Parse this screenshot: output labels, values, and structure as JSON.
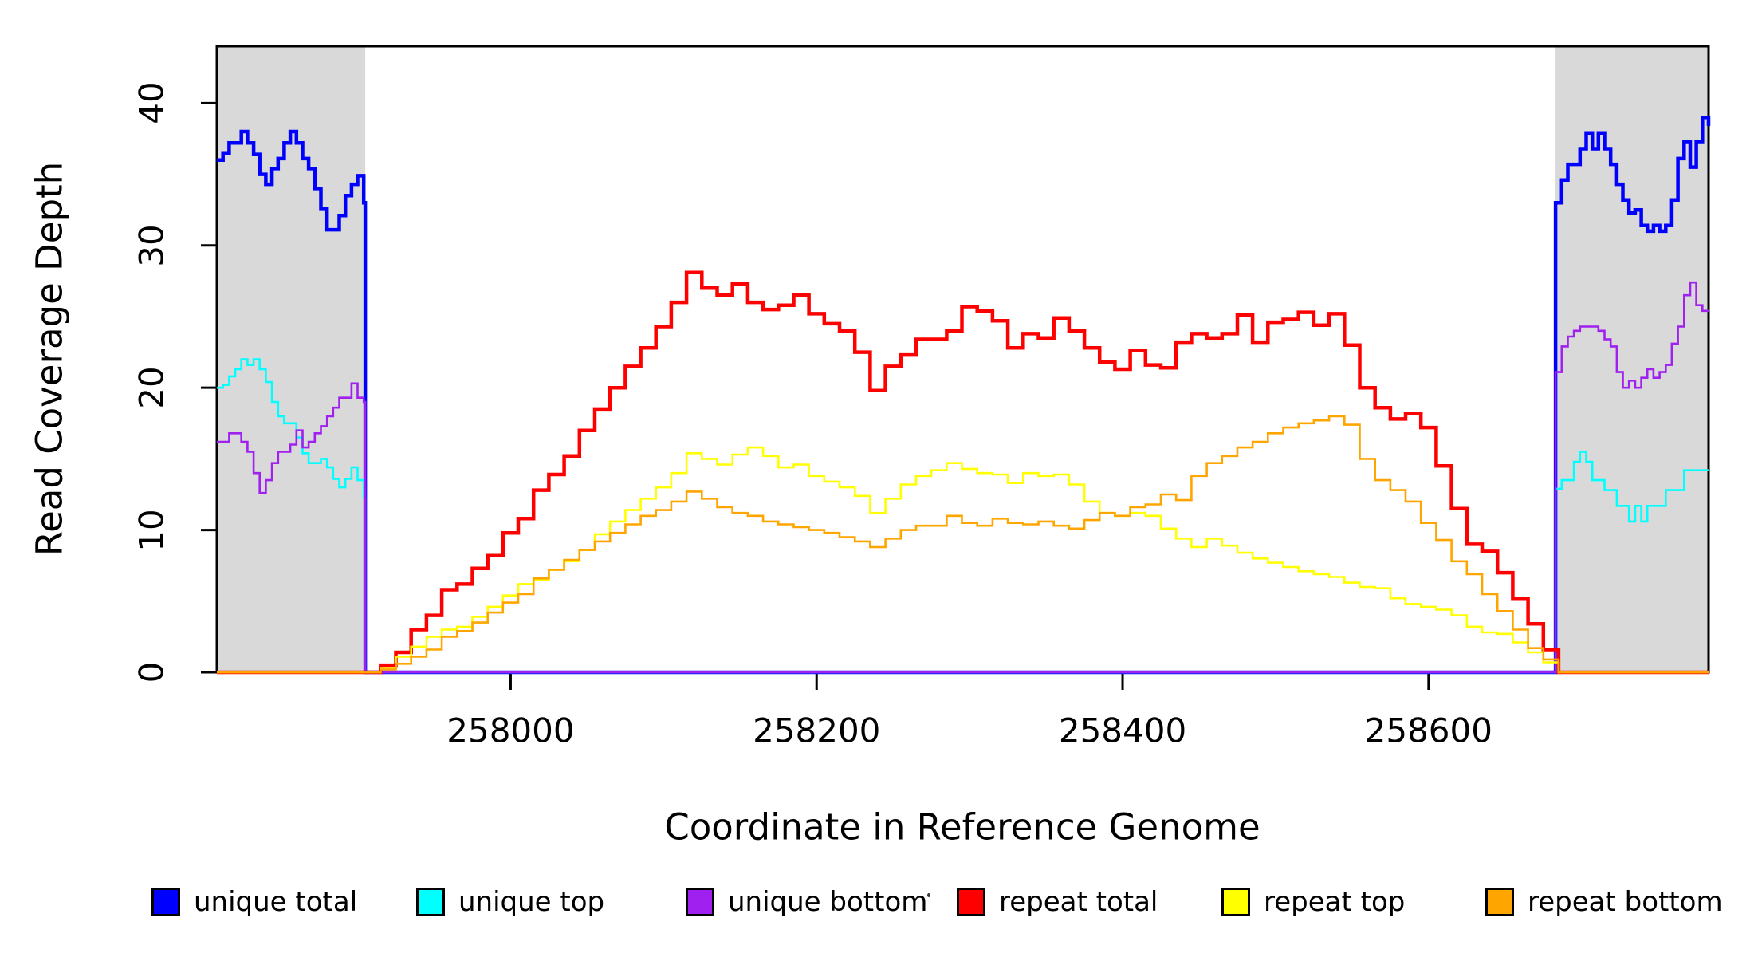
{
  "chart_data": {
    "type": "line",
    "step": true,
    "title": "",
    "xlabel": "Coordinate in Reference Genome",
    "ylabel": "Read Coverage Depth",
    "xlim": [
      257808,
      258783
    ],
    "ylim": [
      0,
      44
    ],
    "xticks": [
      258000,
      258200,
      258400,
      258600
    ],
    "yticks": [
      0,
      10,
      20,
      30,
      40
    ],
    "grid": false,
    "legend_position": "bottom",
    "background_color": "#ffffff",
    "shaded_regions": [
      {
        "name": "left-flank-unique-region",
        "x0": 257808,
        "x1": 257905,
        "color": "#d9d9d9"
      },
      {
        "name": "right-flank-unique-region",
        "x0": 258683,
        "x1": 258783,
        "color": "#d9d9d9"
      }
    ],
    "series": [
      {
        "name": "unique total",
        "color": "#0000ff",
        "line_width": 4.5,
        "parts": [
          {
            "x0": 257808,
            "dx": 4,
            "values": [
              36,
              36.5,
              37.2,
              37.2,
              38,
              37.2,
              36.4,
              35,
              34.3,
              35.4,
              36.1,
              37.2,
              38,
              37.2,
              36.1,
              35.4,
              34,
              32.6,
              31.1,
              31.1,
              32.1,
              33.5,
              34.3,
              34.9,
              33
            ]
          },
          {
            "x": 257905,
            "y": 0
          },
          {
            "x": 258683,
            "y": 33
          },
          {
            "x0": 258687,
            "dx": 4,
            "values": [
              34.6,
              35.7,
              35.7,
              36.8,
              37.9,
              36.8,
              37.9,
              36.8,
              35.7,
              34.3,
              33.2,
              32.3,
              32.5,
              31.4,
              31,
              31.4,
              31,
              31.4,
              33.2,
              36.1,
              37.3,
              35.5,
              37.3,
              39,
              38.4
            ]
          }
        ]
      },
      {
        "name": "unique top",
        "color": "#00ffff",
        "line_width": 2.6,
        "parts": [
          {
            "x0": 257808,
            "dx": 4,
            "values": [
              20,
              20.2,
              20.8,
              21.3,
              22,
              21.6,
              22,
              21.3,
              20.4,
              19,
              18,
              17.5,
              17.5,
              16.5,
              15.4,
              14.7,
              14.7,
              15,
              14.4,
              13.6,
              13,
              13.6,
              14.4,
              13.5,
              12.3
            ]
          },
          {
            "x": 257905,
            "y": 0
          },
          {
            "x": 258683,
            "y": 12.9
          },
          {
            "x0": 258687,
            "dx": 4,
            "values": [
              13.5,
              13.5,
              14.8,
              15.5,
              14.8,
              13.5,
              13.5,
              12.8,
              12.8,
              11.7,
              11.7,
              10.6,
              11.7,
              10.6,
              11.7,
              11.7,
              11.7,
              12.8,
              12.8,
              12.8,
              14.2,
              14.2,
              14.2,
              14.2,
              14.2
            ]
          }
        ]
      },
      {
        "name": "unique bottom",
        "color": "#a020f0",
        "line_width": 2.6,
        "parts": [
          {
            "x0": 257808,
            "dx": 4,
            "values": [
              16.2,
              16.2,
              16.8,
              16.8,
              16.2,
              15.5,
              14,
              12.6,
              13.5,
              14.7,
              15.5,
              15.5,
              16,
              17,
              15.8,
              16.2,
              16.8,
              17.3,
              18,
              18.6,
              19.3,
              19.3,
              20.3,
              19.3,
              19
            ]
          },
          {
            "x": 257905,
            "y": 0
          },
          {
            "x": 258683,
            "y": 21.1
          },
          {
            "x0": 258687,
            "dx": 4,
            "values": [
              22.9,
              23.6,
              24,
              24.3,
              24.3,
              24.3,
              24,
              23.4,
              22.9,
              21.1,
              20,
              20.5,
              20,
              20.7,
              21.3,
              20.7,
              21.1,
              21.6,
              23.1,
              24.3,
              26.5,
              27.4,
              25.8,
              25.4,
              25.4
            ]
          }
        ]
      },
      {
        "name": "repeat total",
        "color": "#ff0000",
        "line_width": 4.5,
        "parts": [
          {
            "x": 257808,
            "y": 0
          },
          {
            "x": 257905,
            "y": 0
          },
          {
            "x0": 257915,
            "dx": 10,
            "values": [
              0.5,
              1.4,
              3,
              4,
              5.8,
              6.2,
              7.3,
              8.2,
              9.8,
              10.8,
              12.8,
              13.9,
              15.2,
              17,
              18.5,
              20,
              21.5,
              22.8,
              24.3,
              26,
              28.1,
              27,
              26.5,
              27.3,
              26,
              25.5,
              25.8,
              26.5,
              25.2,
              24.5,
              24,
              22.5,
              19.8,
              21.5,
              22.3,
              23.4,
              23.4,
              24,
              25.7,
              25.4,
              24.7,
              22.8,
              23.8,
              23.5,
              24.9,
              24,
              22.8,
              21.8,
              21.3,
              22.6,
              21.6,
              21.4,
              23.2,
              23.8,
              23.5,
              23.8,
              25.1,
              23.2,
              24.6,
              24.8,
              25.3,
              24.4,
              25.2,
              23,
              20,
              18.6,
              17.8,
              18.2,
              17.2,
              14.5,
              11.5,
              9,
              8.5,
              7,
              5.2,
              3.4,
              1.6,
              0
            ]
          },
          {
            "x": 258783,
            "y": 0
          }
        ]
      },
      {
        "name": "repeat top",
        "color": "#ffff00",
        "line_width": 2.6,
        "parts": [
          {
            "x": 257808,
            "y": 0
          },
          {
            "x": 257905,
            "y": 0
          },
          {
            "x0": 257915,
            "dx": 10,
            "values": [
              0.3,
              1.1,
              1.8,
              2.5,
              3,
              3.2,
              3.9,
              4.6,
              5.4,
              6.2,
              6.5,
              7.2,
              7.8,
              8.6,
              9.7,
              10.6,
              11.4,
              12.2,
              13,
              14,
              15.4,
              15,
              14.6,
              15.3,
              15.8,
              15.2,
              14.4,
              14.6,
              13.8,
              13.4,
              13,
              12.4,
              11.2,
              12.2,
              13.2,
              13.8,
              14.2,
              14.7,
              14.3,
              14,
              13.9,
              13.3,
              14,
              13.8,
              13.9,
              13.2,
              12,
              11.2,
              11,
              11.2,
              11,
              10.1,
              9.4,
              8.8,
              9.4,
              8.9,
              8.4,
              8,
              7.7,
              7.4,
              7.1,
              6.9,
              6.7,
              6.3,
              6,
              5.9,
              5.2,
              4.8,
              4.6,
              4.4,
              4,
              3.2,
              2.8,
              2.7,
              2.1,
              1.4,
              0.7,
              0
            ]
          },
          {
            "x": 258783,
            "y": 0
          }
        ]
      },
      {
        "name": "repeat bottom",
        "color": "#ffa500",
        "line_width": 2.6,
        "parts": [
          {
            "x": 257808,
            "y": 0
          },
          {
            "x": 257905,
            "y": 0
          },
          {
            "x0": 257915,
            "dx": 10,
            "values": [
              0.2,
              0.6,
              1.1,
              1.6,
              2.5,
              2.9,
              3.5,
              4.2,
              4.9,
              5.5,
              6.6,
              7.2,
              7.9,
              8.6,
              9.2,
              9.8,
              10.4,
              11,
              11.4,
              12,
              12.7,
              12.2,
              11.6,
              11.2,
              11,
              10.6,
              10.4,
              10.2,
              10,
              9.8,
              9.5,
              9.2,
              8.8,
              9.4,
              10,
              10.3,
              10.3,
              11,
              10.5,
              10.3,
              10.8,
              10.5,
              10.4,
              10.6,
              10.3,
              10.1,
              10.7,
              11.2,
              11,
              11.6,
              11.8,
              12.5,
              12.1,
              13.8,
              14.7,
              15.2,
              15.8,
              16.2,
              16.8,
              17.2,
              17.5,
              17.7,
              18,
              17.4,
              15,
              13.5,
              12.8,
              12,
              10.5,
              9.3,
              7.8,
              6.9,
              5.5,
              4.3,
              3,
              1.7,
              0.9,
              0
            ]
          },
          {
            "x": 258783,
            "y": 0
          }
        ]
      }
    ],
    "legend": {
      "items": [
        {
          "label": "unique total",
          "color": "#0000ff"
        },
        {
          "label": "unique top",
          "color": "#00ffff"
        },
        {
          "label": "unique bottom",
          "color": "#a020f0"
        },
        {
          "label": "repeat total",
          "color": "#ff0000"
        },
        {
          "label": "repeat top",
          "color": "#ffff00"
        },
        {
          "label": "repeat bottom",
          "color": "#ffa500"
        }
      ]
    },
    "axis_color": "#000000"
  }
}
